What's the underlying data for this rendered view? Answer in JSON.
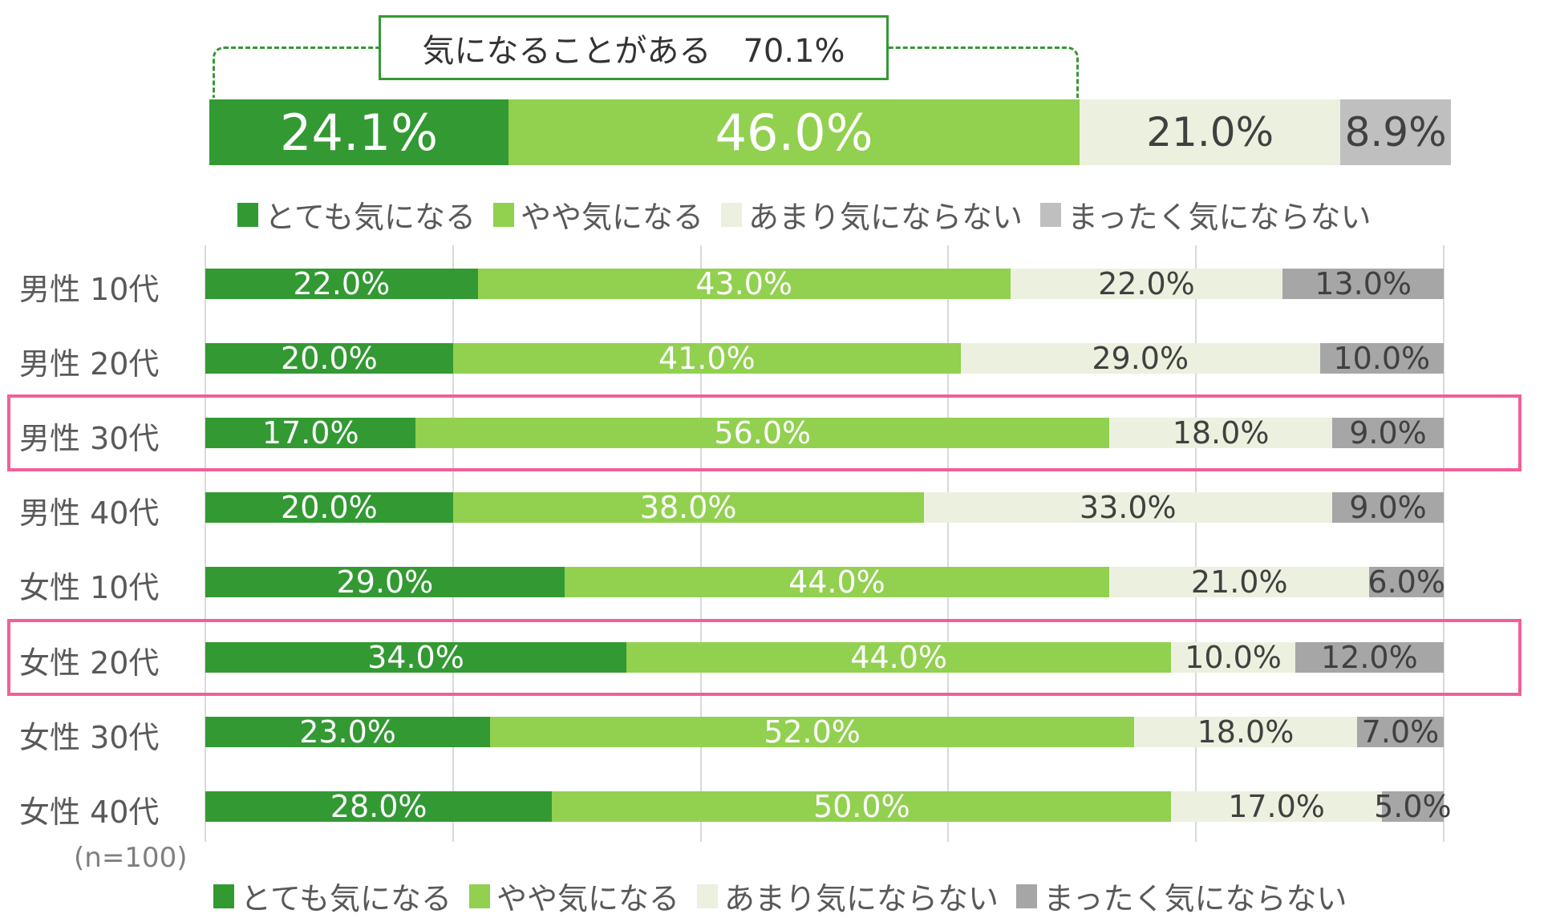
{
  "chart_data": {
    "type": "bar",
    "orientation": "horizontal",
    "stacked": true,
    "colors": [
      "#339933",
      "#92d050",
      "#ebf1de",
      "#a6a6a6"
    ],
    "total_gray_color": "#bfbfbf",
    "highlight_color": "#f0609a",
    "legend": [
      "とても気になる",
      "やや気になる",
      "あまり気にならない",
      "まったく気にならない"
    ],
    "callout": "気になることがある　70.1%",
    "total": {
      "values": [
        24.1,
        46.0,
        21.0,
        8.9
      ],
      "labels": [
        "24.1%",
        "46.0%",
        "21.0%",
        "8.9%"
      ]
    },
    "categories": [
      "男性 10代",
      "男性 20代",
      "男性 30代",
      "男性 40代",
      "女性 10代",
      "女性 20代",
      "女性 30代",
      "女性 40代"
    ],
    "highlighted": [
      "男性 30代",
      "女性 20代"
    ],
    "series": [
      {
        "name": "とても気になる",
        "values": [
          22.0,
          20.0,
          17.0,
          20.0,
          29.0,
          34.0,
          23.0,
          28.0
        ]
      },
      {
        "name": "やや気になる",
        "values": [
          43.0,
          41.0,
          56.0,
          38.0,
          44.0,
          44.0,
          52.0,
          50.0
        ]
      },
      {
        "name": "あまり気にならない",
        "values": [
          22.0,
          29.0,
          18.0,
          33.0,
          21.0,
          10.0,
          18.0,
          17.0
        ]
      },
      {
        "name": "まったく気にならない",
        "values": [
          13.0,
          10.0,
          9.0,
          9.0,
          6.0,
          12.0,
          7.0,
          5.0
        ]
      }
    ],
    "labels": [
      [
        "22.0%",
        "43.0%",
        "22.0%",
        "13.0%"
      ],
      [
        "20.0%",
        "41.0%",
        "29.0%",
        "10.0%"
      ],
      [
        "17.0%",
        "56.0%",
        "18.0%",
        "9.0%"
      ],
      [
        "20.0%",
        "38.0%",
        "33.0%",
        "9.0%"
      ],
      [
        "29.0%",
        "44.0%",
        "21.0%",
        "6.0%"
      ],
      [
        "34.0%",
        "44.0%",
        "10.0%",
        "12.0%"
      ],
      [
        "23.0%",
        "52.0%",
        "18.0%",
        "7.0%"
      ],
      [
        "28.0%",
        "50.0%",
        "17.0%",
        "5.0%"
      ]
    ],
    "xlim": [
      0,
      100
    ],
    "grid": true,
    "note": "(n=100)"
  }
}
